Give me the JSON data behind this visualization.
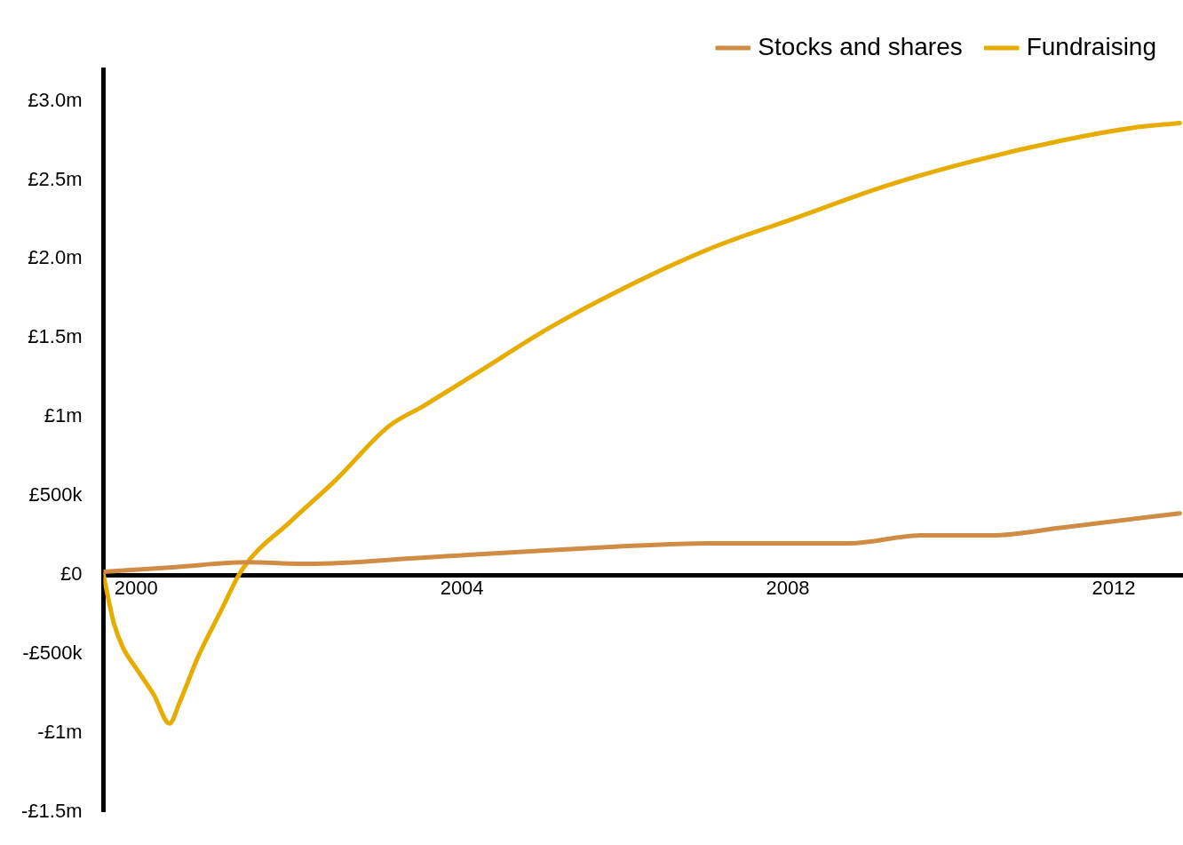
{
  "chart_data": {
    "type": "line",
    "legend": "top right",
    "grid": false,
    "marker": "none",
    "line_style": "solid",
    "xlim": [
      1999.6,
      2012.85
    ],
    "xticks": [
      2000,
      2004,
      2008,
      2012
    ],
    "ylim": [
      -1500000,
      3200000
    ],
    "yticks": [
      {
        "value": 3000000,
        "label": "£3.0m"
      },
      {
        "value": 2500000,
        "label": "£2.5m"
      },
      {
        "value": 2000000,
        "label": "£2.0m"
      },
      {
        "value": 1500000,
        "label": "£1.5m"
      },
      {
        "value": 1000000,
        "label": "£1m"
      },
      {
        "value": 500000,
        "label": "£500k"
      },
      {
        "value": 0,
        "label": "£0"
      },
      {
        "value": -500000,
        "label": "-£500k"
      },
      {
        "value": -1000000,
        "label": "-£1m"
      },
      {
        "value": -1500000,
        "label": "-£1.5m"
      }
    ],
    "series": [
      {
        "name": "Stocks and shares",
        "color": "#d08c44",
        "x": [
          1999.6,
          2000.49,
          2001.36,
          2002.12,
          2003.54,
          2004.84,
          2005.93,
          2007.02,
          2008.11,
          2008.76,
          2009.63,
          2010.5,
          2011.37,
          2012.81
        ],
        "values": [
          20000,
          50000,
          80000,
          70000,
          110000,
          150000,
          180000,
          200000,
          200000,
          200000,
          250000,
          250000,
          300000,
          390000
        ]
      },
      {
        "name": "Fundraising",
        "color": "#e6ac00",
        "x": [
          1999.6,
          1999.73,
          1999.84,
          2000.0,
          2000.22,
          2000.41,
          2000.54,
          2000.76,
          2001.03,
          2001.31,
          2001.9,
          2002.45,
          2003.1,
          2003.53,
          2004.19,
          2005.06,
          2005.93,
          2007.02,
          2008.1,
          2009.19,
          2010.28,
          2011.37,
          2012.24,
          2012.81
        ],
        "values": [
          0,
          -310000,
          -460000,
          -590000,
          -760000,
          -940000,
          -800000,
          -520000,
          -240000,
          40000,
          340000,
          600000,
          940000,
          1070000,
          1280000,
          1560000,
          1800000,
          2060000,
          2260000,
          2460000,
          2620000,
          2750000,
          2830000,
          2860000
        ]
      }
    ]
  }
}
